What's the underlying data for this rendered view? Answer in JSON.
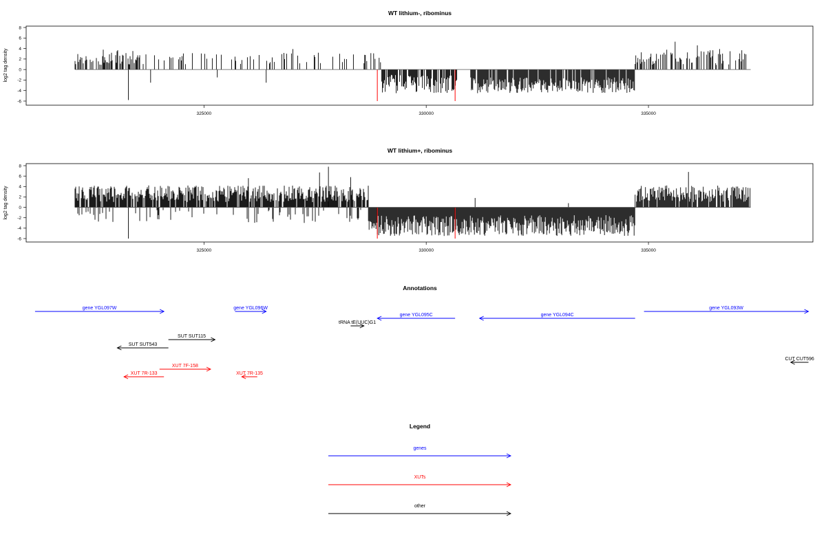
{
  "colors": {
    "genes": "#0000ff",
    "xuts": "#ff0000",
    "other": "#000000",
    "highlight": "#ff0000"
  },
  "chart_data": [
    {
      "type": "bar",
      "title": "WT lithium-, ribominus",
      "ylabel": "log2 tag density",
      "ylim": [
        -6,
        8
      ],
      "y_ticks": [
        "8",
        "6",
        "4",
        "2",
        "0",
        "-2",
        "-4",
        "-6"
      ],
      "xlim": [
        321000,
        338700
      ],
      "x_ticks": [
        {
          "value": 325000,
          "label": "325000"
        },
        {
          "value": 330000,
          "label": "330000"
        },
        {
          "value": 335000,
          "label": "335000"
        }
      ],
      "series": [
        {
          "segments": [
            {
              "x_start": 322100,
              "x_end": 323700,
              "direction": "up",
              "range": [
                0.8,
                3.8
              ],
              "density": 0.55,
              "seed": 11
            },
            {
              "x_start": 323700,
              "x_end": 328700,
              "direction": "up",
              "range": [
                1.0,
                3.2
              ],
              "density": 0.1,
              "seed": 23
            },
            {
              "x_start": 328600,
              "x_end": 329000,
              "direction": "up",
              "range": [
                1.0,
                3.2
              ],
              "density": 0.3,
              "seed": 31
            },
            {
              "x_start": 329000,
              "x_end": 330700,
              "direction": "down",
              "range": [
                -4.5,
                -1.0
              ],
              "density": 0.75,
              "seed": 37
            },
            {
              "x_start": 331000,
              "x_end": 334700,
              "direction": "down",
              "range": [
                -4.5,
                -1.5
              ],
              "density": 0.9,
              "seed": 41
            },
            {
              "x_start": 334700,
              "x_end": 337200,
              "direction": "up",
              "range": [
                0.8,
                3.8
              ],
              "density": 0.4,
              "seed": 53
            }
          ]
        },
        {
          "name": "spikes",
          "points": [
            {
              "x": 323300,
              "y": -5.8
            },
            {
              "x": 323800,
              "y": -2.5
            },
            {
              "x": 324300,
              "y": 2.3
            },
            {
              "x": 326400,
              "y": -2.5
            },
            {
              "x": 327000,
              "y": 3.9
            },
            {
              "x": 325300,
              "y": -1.5
            },
            {
              "x": 335600,
              "y": 5.3
            },
            {
              "x": 336600,
              "y": 3.9
            },
            {
              "x": 336100,
              "y": 4.6
            }
          ]
        }
      ],
      "highlight_x": [
        328900,
        330650
      ]
    },
    {
      "type": "bar",
      "title": "WT lithium+, ribominus",
      "ylabel": "log2 tag density",
      "ylim": [
        -6,
        8
      ],
      "y_ticks": [
        "8",
        "6",
        "4",
        "2",
        "0",
        "-2",
        "-4",
        "-6"
      ],
      "xlim": [
        321000,
        338700
      ],
      "x_ticks": [
        {
          "value": 325000,
          "label": "325000"
        },
        {
          "value": 330000,
          "label": "330000"
        },
        {
          "value": 335000,
          "label": "335000"
        }
      ],
      "series": [
        {
          "segments": [
            {
              "x_start": 322100,
              "x_end": 328700,
              "direction": "up",
              "range": [
                1.0,
                4.2
              ],
              "density": 0.85,
              "seed": 61
            },
            {
              "x_start": 322100,
              "x_end": 328700,
              "direction": "down",
              "range": [
                -3.0,
                -0.5
              ],
              "density": 0.12,
              "seed": 67
            },
            {
              "x_start": 328700,
              "x_end": 334700,
              "direction": "down",
              "range": [
                -5.5,
                -1.5
              ],
              "density": 1.0,
              "seed": 71
            },
            {
              "x_start": 334700,
              "x_end": 337300,
              "direction": "up",
              "range": [
                1.0,
                4.2
              ],
              "density": 0.85,
              "seed": 79
            }
          ]
        },
        {
          "name": "spikes",
          "points": [
            {
              "x": 323300,
              "y": -6.0
            },
            {
              "x": 327800,
              "y": 7.8
            },
            {
              "x": 327600,
              "y": 6.7
            },
            {
              "x": 335900,
              "y": 6.8
            },
            {
              "x": 328300,
              "y": 5.8
            },
            {
              "x": 331100,
              "y": 1.8
            },
            {
              "x": 333200,
              "y": 0.8
            },
            {
              "x": 326000,
              "y": 5.6
            }
          ]
        }
      ],
      "highlight_x": [
        328900,
        330650
      ]
    }
  ],
  "annotations": {
    "title": "Annotations",
    "items": [
      {
        "label": "gene YGL097W",
        "color": "genes",
        "start": 321200,
        "end": 324100,
        "dir": "right",
        "row": 0
      },
      {
        "label": "gene YGL096W",
        "color": "genes",
        "start": 325700,
        "end": 326400,
        "dir": "right",
        "row": 0
      },
      {
        "label": "gene YGL093W",
        "color": "genes",
        "start": 334900,
        "end": 338600,
        "dir": "right",
        "row": 0
      },
      {
        "label": "gene YGL095C",
        "color": "genes",
        "start": 328900,
        "end": 330650,
        "dir": "left",
        "row": 1
      },
      {
        "label": "gene YGL094C",
        "color": "genes",
        "start": 331200,
        "end": 334700,
        "dir": "left",
        "row": 1
      },
      {
        "label": "tRNA tE(UUC)G1",
        "color": "other",
        "start": 328300,
        "end": 328600,
        "dir": "right",
        "row": 2
      },
      {
        "label": "SUT SUT115",
        "color": "other",
        "start": 324200,
        "end": 325250,
        "dir": "right",
        "row": 3
      },
      {
        "label": "SUT SUT543",
        "color": "other",
        "start": 323050,
        "end": 324200,
        "dir": "left",
        "row": 4
      },
      {
        "label": "CUT CUT596",
        "color": "other",
        "start": 338200,
        "end": 338600,
        "dir": "left",
        "row": 5
      },
      {
        "label": "XUT 7F-158",
        "color": "xuts",
        "start": 324000,
        "end": 325150,
        "dir": "right",
        "row": 6
      },
      {
        "label": "XUT 7R-133",
        "color": "xuts",
        "start": 323200,
        "end": 324100,
        "dir": "left",
        "row": 7
      },
      {
        "label": "XUT 7R-135",
        "color": "xuts",
        "start": 325850,
        "end": 326200,
        "dir": "left",
        "row": 7
      }
    ]
  },
  "legend": {
    "title": "Legend",
    "items": [
      {
        "label": "genes",
        "color": "genes"
      },
      {
        "label": "XUTs",
        "color": "xuts"
      },
      {
        "label": "other",
        "color": "other"
      }
    ]
  }
}
